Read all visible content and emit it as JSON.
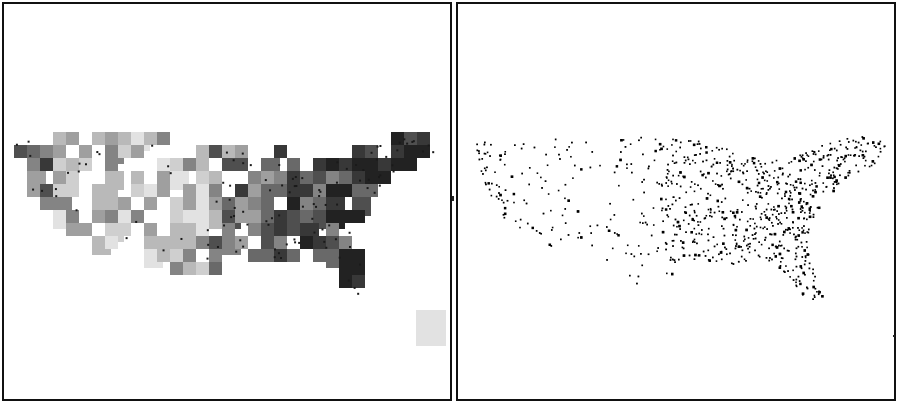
{
  "figure": {
    "left_panel": {
      "kind": "gridded-density-map",
      "region": "contiguous-united-states",
      "colors": {
        "cell_shades": [
          "#f1f1f1",
          "#e2e2e2",
          "#cfcfcf",
          "#b9b9b9",
          "#9f9f9f",
          "#848484",
          "#696969",
          "#4f4f4f",
          "#383838",
          "#222222"
        ],
        "point": "#1a1a1a"
      }
    },
    "right_panel": {
      "kind": "point-scatter-map",
      "region": "contiguous-united-states",
      "colors": {
        "point": "#000000"
      }
    },
    "colors": {
      "frame": "#111111",
      "background": "#ffffff"
    }
  }
}
